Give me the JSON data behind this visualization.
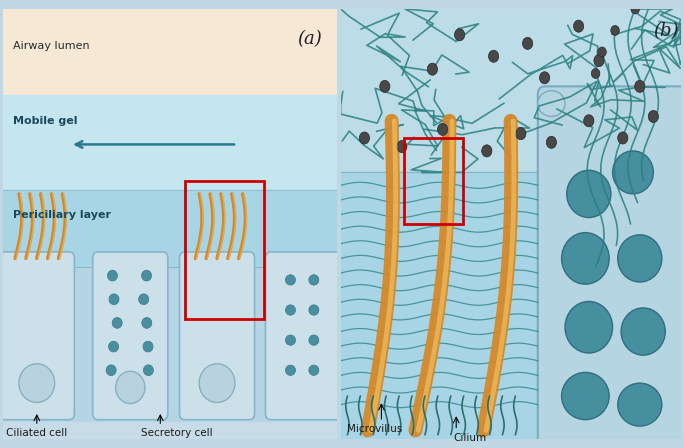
{
  "panel_a": {
    "label_airway": "Airway lumen",
    "label_mobile": "Mobile gel",
    "label_periciliary": "Periciliary layer",
    "label_ciliated": "Ciliated cell",
    "label_secretory": "Secretory cell",
    "panel_label": "(a)",
    "airway_color": "#f5e8d5",
    "mobile_gel_color": "#c5e5ef",
    "periciliary_color": "#a8d5e5",
    "cell_bg_color": "#b5d5e5",
    "cell_fill": "#cce0ea",
    "cell_edge": "#88b8cc",
    "dot_fill": "#4a8fa0",
    "dot_edge": "#357a8a",
    "cilia_main": "#d4882a",
    "cilia_highlight": "#f0c060",
    "arrow_color": "#2a7a8c",
    "red_box_color": "#cc0000"
  },
  "panel_b": {
    "label_microvillus": "Microvillus",
    "label_cilium": "Cilium",
    "panel_label": "(b)",
    "periciliary_color": "#a8d5e5",
    "mucus_color": "#b5dce8",
    "cell_fill": "#a8ccd8",
    "cell_edge": "#78a8bc",
    "large_dot_fill": "#3a8898",
    "large_dot_edge": "#2a6878",
    "cilia_main": "#d4882a",
    "cilia_highlight": "#f0c060",
    "wavy_color": "#2a8080",
    "mucus_strand_color": "#2a8080",
    "dark_dot_color": "#484848",
    "microvillus_color": "#2a7070",
    "red_box_color": "#cc0000"
  }
}
